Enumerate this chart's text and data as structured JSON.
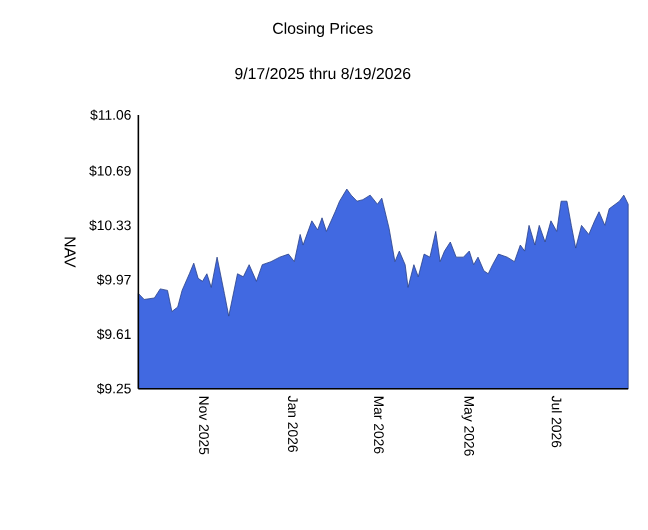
{
  "chart_data": {
    "type": "area",
    "title": "Closing Prices",
    "subtitle": "9/17/2025 thru 8/19/2026",
    "ylabel": "NAV",
    "x": [
      "2025-09-17",
      "2025-09-21",
      "2025-09-28",
      "2025-10-02",
      "2025-10-07",
      "2025-10-10",
      "2025-10-14",
      "2025-10-17",
      "2025-10-22",
      "2025-10-25",
      "2025-10-28",
      "2025-10-31",
      "2025-11-03",
      "2025-11-06",
      "2025-11-10",
      "2025-11-15",
      "2025-11-18",
      "2025-11-24",
      "2025-11-28",
      "2025-12-02",
      "2025-12-07",
      "2025-12-11",
      "2025-12-17",
      "2025-12-23",
      "2025-12-29",
      "2026-01-02",
      "2026-01-06",
      "2026-01-08",
      "2026-01-14",
      "2026-01-18",
      "2026-01-21",
      "2026-01-24",
      "2026-01-30",
      "2026-02-02",
      "2026-02-07",
      "2026-02-10",
      "2026-02-14",
      "2026-02-18",
      "2026-02-23",
      "2026-02-28",
      "2026-03-03",
      "2026-03-04",
      "2026-03-08",
      "2026-03-12",
      "2026-03-15",
      "2026-03-19",
      "2026-03-21",
      "2026-03-25",
      "2026-03-28",
      "2026-04-01",
      "2026-04-05",
      "2026-04-09",
      "2026-04-12",
      "2026-04-15",
      "2026-04-19",
      "2026-04-23",
      "2026-04-28",
      "2026-05-02",
      "2026-05-05",
      "2026-05-08",
      "2026-05-12",
      "2026-05-15",
      "2026-05-18",
      "2026-05-22",
      "2026-05-28",
      "2026-06-02",
      "2026-06-06",
      "2026-06-09",
      "2026-06-12",
      "2026-06-16",
      "2026-06-19",
      "2026-06-23",
      "2026-06-27",
      "2026-07-01",
      "2026-07-04",
      "2026-07-08",
      "2026-07-11",
      "2026-07-14",
      "2026-07-18",
      "2026-07-23",
      "2026-07-27",
      "2026-07-30",
      "2026-08-03",
      "2026-08-06",
      "2026-08-13",
      "2026-08-16",
      "2026-08-19"
    ],
    "series": [
      {
        "color": "#4169e1",
        "values": [
          9.88,
          9.84,
          9.85,
          9.91,
          9.9,
          9.76,
          9.79,
          9.9,
          10.01,
          10.08,
          9.98,
          9.96,
          10.01,
          9.92,
          10.12,
          9.88,
          9.73,
          10.01,
          9.99,
          10.07,
          9.96,
          10.07,
          10.09,
          10.12,
          10.14,
          10.09,
          10.27,
          10.2,
          10.36,
          10.3,
          10.38,
          10.29,
          10.42,
          10.49,
          10.57,
          10.53,
          10.49,
          10.5,
          10.53,
          10.47,
          10.51,
          10.47,
          10.31,
          10.09,
          10.16,
          10.07,
          9.92,
          10.07,
          9.99,
          10.14,
          10.12,
          10.29,
          10.09,
          10.16,
          10.22,
          10.12,
          10.12,
          10.16,
          10.07,
          10.12,
          10.03,
          10.01,
          10.07,
          10.14,
          10.12,
          10.09,
          10.2,
          10.16,
          10.33,
          10.2,
          10.33,
          10.22,
          10.36,
          10.29,
          10.49,
          10.49,
          10.33,
          10.18,
          10.33,
          10.27,
          10.36,
          10.42,
          10.33,
          10.44,
          10.49,
          10.53,
          10.47
        ]
      }
    ],
    "xlim": [
      "2025-09-17",
      "2026-08-19"
    ],
    "xticks": [
      {
        "value": "2025-11-01",
        "label": "Nov 2025"
      },
      {
        "value": "2026-01-01",
        "label": "Jan 2026"
      },
      {
        "value": "2026-03-01",
        "label": "Mar 2026"
      },
      {
        "value": "2026-05-01",
        "label": "May 2026"
      },
      {
        "value": "2026-07-01",
        "label": "Jul 2026"
      }
    ],
    "ylim": [
      9.25,
      11.06
    ],
    "yticks": [
      {
        "value": 9.25,
        "label": "$9.25"
      },
      {
        "value": 9.61,
        "label": "$9.61"
      },
      {
        "value": 9.97,
        "label": "$9.97"
      },
      {
        "value": 10.33,
        "label": "$10.33"
      },
      {
        "value": 10.69,
        "label": "$10.69"
      },
      {
        "value": 11.06,
        "label": "$11.06"
      }
    ]
  }
}
